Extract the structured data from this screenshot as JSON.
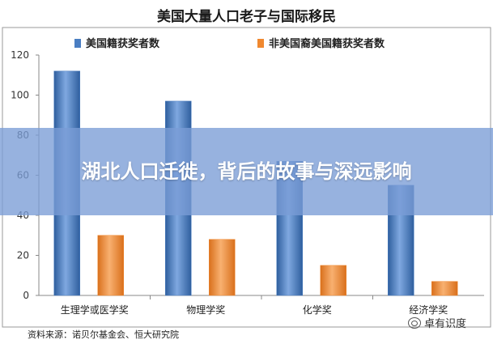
{
  "chart_data": {
    "type": "bar",
    "title": "美国大量人口老子与国际移民",
    "categories": [
      "生理学或医学奖",
      "物理学奖",
      "化学奖",
      "经济学奖"
    ],
    "series": [
      {
        "name": "美国籍获奖者数",
        "values": [
          112,
          97,
          67,
          55
        ]
      },
      {
        "name": "非美国裔美国籍获奖者数",
        "values": [
          30,
          28,
          15,
          7
        ]
      }
    ],
    "ylim": [
      0,
      120
    ],
    "yticks": [
      0,
      20,
      40,
      60,
      80,
      100,
      120
    ],
    "grid": false,
    "legend_position": "top",
    "colors": {
      "series1": "#4a7ec2",
      "series2": "#f0882f"
    }
  },
  "overlay": {
    "headline": "湖北人口迁徙，背后的故事与深远影响"
  },
  "source": "资料来源：诺贝尔基金会、恒大研究院",
  "watermark": {
    "text": "卓有识度"
  }
}
